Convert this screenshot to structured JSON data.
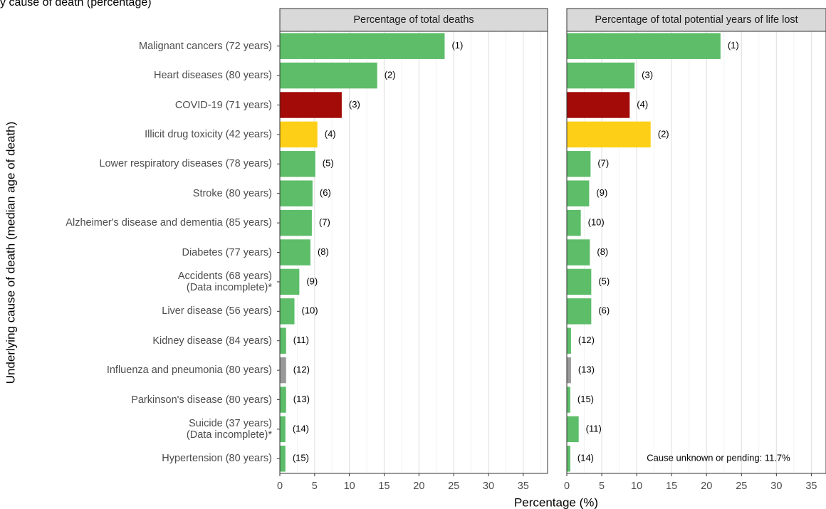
{
  "chart_data": {
    "type": "bar",
    "orientation": "horizontal",
    "title": "y cause of death (percentage)",
    "y_label": "Underlying cause of death (median age of death)",
    "x_label": "Percentage (%)",
    "categories": [
      "Malignant cancers (72 years)",
      "Heart diseases (80 years)",
      "COVID-19 (71 years)",
      "Illicit drug toxicity (42 years)",
      "Lower respiratory diseases (78 years)",
      "Stroke (80 years)",
      "Alzheimer's disease and dementia (85 years)",
      "Diabetes (77 years)",
      "Accidents (68 years)\n(Data incomplete)*",
      "Liver disease (56 years)",
      "Kidney disease (84 years)",
      "Influenza and pneumonia (80 years)",
      "Parkinson's disease (80 years)",
      "Suicide (37 years)\n(Data incomplete)*",
      "Hypertension (80 years)"
    ],
    "colors": [
      "#5dbd69",
      "#5dbd69",
      "#a30b08",
      "#fdd017",
      "#5dbd69",
      "#5dbd69",
      "#5dbd69",
      "#5dbd69",
      "#5dbd69",
      "#5dbd69",
      "#5dbd69",
      "#999999",
      "#5dbd69",
      "#5dbd69",
      "#5dbd69"
    ],
    "grid": true,
    "facets": [
      {
        "title": "Percentage of total deaths",
        "values": [
          23.7,
          14.0,
          8.9,
          5.4,
          5.1,
          4.7,
          4.6,
          4.4,
          2.8,
          2.1,
          0.9,
          0.9,
          0.9,
          0.8,
          0.8
        ],
        "rank_labels": [
          "(1)",
          "(2)",
          "(3)",
          "(4)",
          "(5)",
          "(6)",
          "(7)",
          "(8)",
          "(9)",
          "(10)",
          "(11)",
          "(12)",
          "(13)",
          "(14)",
          "(15)"
        ],
        "xlim": [
          0,
          38.5
        ],
        "xticks": [
          0,
          5,
          10,
          15,
          20,
          25,
          30,
          35
        ],
        "minor_xticks": [
          2.5,
          7.5,
          12.5,
          17.5,
          22.5,
          27.5,
          32.5,
          37.5
        ]
      },
      {
        "title": "Percentage of total potential years of life lost",
        "values": [
          22.0,
          9.7,
          9.0,
          12.0,
          3.4,
          3.2,
          2.0,
          3.3,
          3.5,
          3.5,
          0.6,
          0.6,
          0.5,
          1.7,
          0.5
        ],
        "rank_labels": [
          "(1)",
          "(3)",
          "(4)",
          "(2)",
          "(7)",
          "(9)",
          "(10)",
          "(8)",
          "(5)",
          "(6)",
          "(12)",
          "(13)",
          "(15)",
          "(11)",
          "(14)"
        ],
        "xlim": [
          0,
          37.1
        ],
        "xticks": [
          0,
          5,
          10,
          15,
          20,
          25,
          30,
          35
        ],
        "minor_xticks": [
          2.5,
          7.5,
          12.5,
          17.5,
          22.5,
          27.5,
          32.5
        ],
        "annotation": "Cause unknown or pending: 11.7%"
      }
    ]
  }
}
